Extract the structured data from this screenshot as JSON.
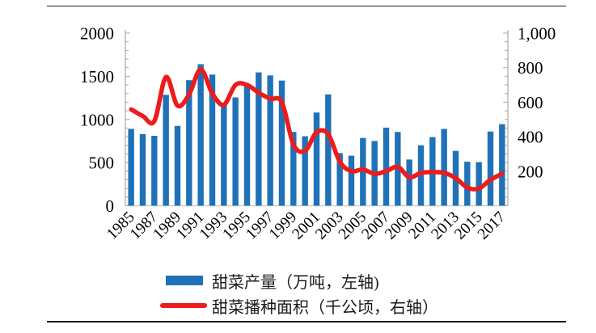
{
  "chart_data": {
    "type": "bar-line-combo",
    "categories": [
      1985,
      1986,
      1987,
      1988,
      1989,
      1990,
      1991,
      1992,
      1993,
      1994,
      1995,
      1996,
      1997,
      1998,
      1999,
      2000,
      2001,
      2002,
      2003,
      2004,
      2005,
      2006,
      2007,
      2008,
      2009,
      2010,
      2011,
      2012,
      2013,
      2014,
      2015,
      2016,
      2017
    ],
    "series": [
      {
        "name": "甜菜产量（万吨，左轴)",
        "type": "bar",
        "axis": "left",
        "color": "#1F72B8",
        "values": [
          890,
          830,
          810,
          1285,
          925,
          1455,
          1640,
          1520,
          1170,
          1255,
          1390,
          1545,
          1510,
          1450,
          855,
          805,
          1080,
          1290,
          610,
          580,
          785,
          750,
          905,
          855,
          535,
          700,
          795,
          890,
          635,
          510,
          505,
          860,
          945
        ]
      },
      {
        "name": "甜菜播种面积（千公顷，右轴）",
        "type": "line",
        "axis": "right",
        "color": "#EC1C1C",
        "values": [
          558,
          520,
          490,
          745,
          580,
          645,
          790,
          650,
          585,
          700,
          700,
          655,
          620,
          600,
          355,
          318,
          425,
          415,
          255,
          200,
          210,
          185,
          200,
          225,
          165,
          190,
          195,
          190,
          160,
          105,
          100,
          150,
          185
        ]
      }
    ],
    "left_axis": {
      "min": 0,
      "max": 2000,
      "tick_values": [
        0,
        500,
        1000,
        1500,
        2000
      ],
      "tick_labels": [
        "0",
        "500",
        "1000",
        "1500",
        "2000"
      ]
    },
    "right_axis": {
      "min": 0,
      "max": 1000,
      "tick_values": [
        200,
        400,
        600,
        800,
        1000
      ],
      "tick_labels": [
        "200",
        "400",
        "600",
        "800",
        "1,000"
      ]
    },
    "x_tick_labels": [
      "1985",
      "1987",
      "1989",
      "1991",
      "1993",
      "1995",
      "1997",
      "1999",
      "2001",
      "2003",
      "2005",
      "2007",
      "2009",
      "2011",
      "2013",
      "2015",
      "2017"
    ],
    "legend_position": "bottom",
    "grid": "off",
    "title": "",
    "colors": {
      "bar_blue": "#1F72B8",
      "line_red": "#EC1C1C",
      "axis_gray": "#A9A9A9",
      "baseline_gray": "#CFCFCF",
      "text_black": "#000000"
    }
  }
}
